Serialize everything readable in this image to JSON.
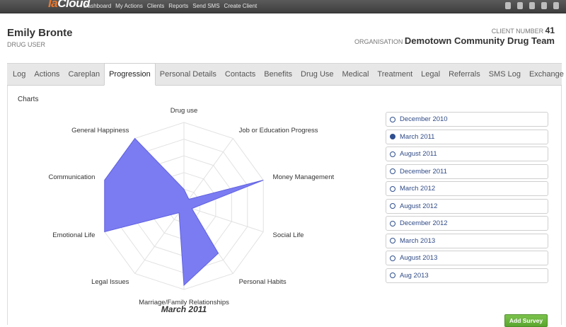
{
  "app": {
    "logo_part1": "Ia",
    "logo_part2": "Cloud",
    "nav": [
      "Dashboard",
      "My Actions",
      "Clients",
      "Reports",
      "Send SMS",
      "Create Client"
    ]
  },
  "client": {
    "name": "Emily Bronte",
    "role": "DRUG USER",
    "number_label": "CLIENT NUMBER",
    "number": "41",
    "org_label": "ORGANISATION",
    "org": "Demotown Community Drug Team"
  },
  "tabs": [
    "Log",
    "Actions",
    "Careplan",
    "Progression",
    "Personal Details",
    "Contacts",
    "Benefits",
    "Drug Use",
    "Medical",
    "Treatment",
    "Legal",
    "Referrals",
    "SMS Log",
    "Exchange"
  ],
  "active_tab": "Progression",
  "section_title": "Charts",
  "chart_data": {
    "type": "radar",
    "title": "March 2011",
    "max": 10,
    "categories": [
      "Drug use",
      "Job or Education Progress",
      "Money Management",
      "Social Life",
      "Personal Habits",
      "Marriage/Family Relationships",
      "Legal Issues",
      "Emotional Life",
      "Communication",
      "General Happiness"
    ],
    "series": [
      {
        "values": [
          2.0,
          1.0,
          10.0,
          1.0,
          7.0,
          9.5,
          1.0,
          10.0,
          10.0,
          10.0
        ],
        "color": "#7b7cf2"
      }
    ]
  },
  "surveys": {
    "selected_index": 1,
    "items": [
      "December 2010",
      "March 2011",
      "August 2011",
      "December 2011",
      "March 2012",
      "August 2012",
      "December 2012",
      "March 2013",
      "August 2013",
      "Aug 2013"
    ]
  },
  "add_survey_label": "Add Survey"
}
